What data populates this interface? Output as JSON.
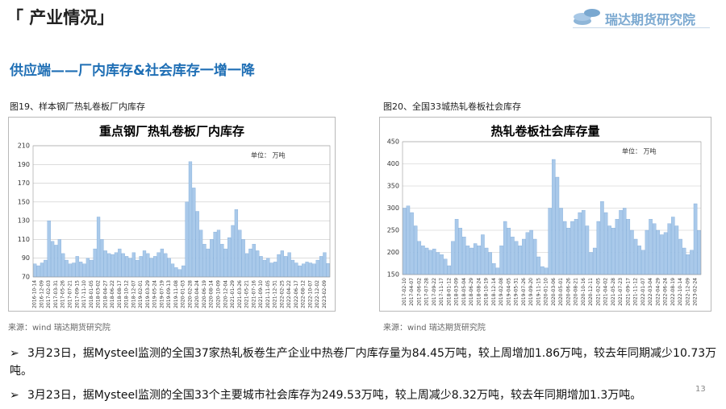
{
  "header": {
    "title": "「 产业情况」",
    "logo": "瑞达期货研究院"
  },
  "subtitle": "供应端——厂内库存&社会库存一增一降",
  "chart_data": [
    {
      "type": "bar",
      "caption": "图19、样本钢厂热轧卷板厂内库存",
      "title": "重点钢厂热轧卷板厂内库存",
      "unit": "单位：  万吨",
      "source": "来源：wind   瑞达期货研究院",
      "color": "#a9c9ea",
      "grid": true,
      "ylim": [
        70,
        210
      ],
      "yticks": [
        70,
        90,
        110,
        130,
        150,
        170,
        190,
        210
      ],
      "categories": [
        "2016-10-14",
        null,
        "2016-12-09",
        null,
        "2017-02-03",
        null,
        "2017-03-31",
        null,
        "2017-05-26",
        null,
        "2017-07-21",
        null,
        "2017-09-15",
        null,
        "2017-11-10",
        null,
        "2018-01-05",
        null,
        "2018-03-02",
        null,
        "2018-04-27",
        null,
        "2018-06-22",
        null,
        "2018-08-17",
        null,
        "2018-10-12",
        null,
        "2018-12-07",
        null,
        "2019-02-01",
        null,
        "2019-03-29",
        null,
        "2019-05-24",
        null,
        "2019-07-19",
        null,
        "2019-09-13",
        null,
        "2019-11-08",
        null,
        "2020-01-03",
        null,
        "2020-02-28",
        null,
        "2020-04-24",
        null,
        "2020-06-19",
        null,
        "2020-08-14",
        null,
        "2020-10-09",
        null,
        "2020-12-04",
        null,
        "2021-01-29",
        null,
        "2021-03-26",
        null,
        "2021-05-21",
        null,
        "2021-07-16",
        null,
        "2021-09-10",
        null,
        "2021-11-05",
        null,
        "2021-12-31",
        null,
        "2022-02-25",
        null,
        "2022-04-22",
        null,
        "2022-06-17",
        null,
        "2022-08-12",
        null,
        "2022-10-07",
        null,
        "2022-12-02",
        null,
        "2023-02-09",
        null
      ],
      "values": [
        84,
        82,
        85,
        88,
        130,
        108,
        104,
        110,
        95,
        88,
        84,
        85,
        92,
        86,
        84,
        90,
        88,
        100,
        134,
        110,
        98,
        95,
        94,
        96,
        100,
        95,
        92,
        90,
        96,
        88,
        92,
        98,
        95,
        90,
        92,
        96,
        100,
        95,
        90,
        84,
        80,
        78,
        82,
        150,
        193,
        165,
        140,
        120,
        105,
        100,
        110,
        118,
        120,
        105,
        100,
        112,
        125,
        142,
        120,
        110,
        95,
        100,
        105,
        98,
        92,
        88,
        90,
        85,
        86,
        94,
        98,
        92,
        96,
        88,
        85,
        82,
        84,
        86,
        85,
        84,
        88,
        92,
        96,
        84.45
      ]
    },
    {
      "type": "bar",
      "caption": "图20、全国33城热轧卷板社会库存",
      "title": "热轧卷板社会库存量",
      "unit": "单位：  万吨",
      "source": "来源：wind   瑞达期货研究院",
      "color": "#a9c9ea",
      "grid": true,
      "ylim": [
        150,
        450
      ],
      "yticks": [
        150,
        200,
        250,
        300,
        350,
        400,
        450
      ],
      "categories": [
        "2017-02-10",
        null,
        "2017-04-07",
        null,
        "2017-06-02",
        null,
        "2017-07-28",
        null,
        "2017-09-22",
        null,
        "2017-11-17",
        null,
        "2018-01-12",
        null,
        "2018-03-09",
        null,
        "2018-05-04",
        null,
        "2018-06-29",
        null,
        "2018-08-24",
        null,
        "2018-10-19",
        null,
        "2018-12-14",
        null,
        "2019-02-08",
        null,
        "2019-04-05",
        null,
        "2019-05-31",
        null,
        "2019-07-26",
        null,
        "2019-09-20",
        null,
        "2019-11-15",
        null,
        "2020-01-10",
        null,
        "2020-03-06",
        null,
        "2020-05-01",
        null,
        "2020-06-26",
        null,
        "2020-08-21",
        null,
        "2020-10-16",
        null,
        "2020-12-11",
        null,
        "2021-02-05",
        null,
        "2021-04-02",
        null,
        "2021-05-28",
        null,
        "2021-07-23",
        null,
        "2021-09-17",
        null,
        "2021-11-12",
        null,
        "2022-01-07",
        null,
        "2022-03-04",
        null,
        "2022-04-29",
        null,
        "2022-06-24",
        null,
        "2022-08-19",
        null,
        "2022-10-14",
        null,
        "2022-12-09",
        null,
        "2023-02-24",
        null
      ],
      "values": [
        300,
        305,
        290,
        260,
        225,
        215,
        210,
        205,
        208,
        200,
        195,
        185,
        170,
        225,
        275,
        255,
        235,
        215,
        210,
        220,
        215,
        240,
        210,
        200,
        175,
        165,
        215,
        270,
        255,
        235,
        225,
        215,
        230,
        245,
        250,
        230,
        190,
        168,
        165,
        300,
        410,
        370,
        300,
        270,
        255,
        270,
        275,
        290,
        295,
        260,
        200,
        210,
        270,
        315,
        290,
        260,
        255,
        275,
        295,
        300,
        275,
        250,
        230,
        215,
        205,
        250,
        275,
        265,
        250,
        240,
        245,
        265,
        280,
        260,
        230,
        210,
        195,
        205,
        310,
        249.53
      ]
    }
  ],
  "bullets": [
    "3月23日，据Mysteel监测的全国37家热轧板卷生产企业中热卷厂内库存量为84.45万吨，较上周增加1.86万吨，较去年同期减少10.73万吨。",
    "3月23日，据Mysteel监测的全国33个主要城市社会库存为249.53万吨，较上周减少8.32万吨，较去年同期增加1.3万吨。"
  ],
  "page_number": 13
}
